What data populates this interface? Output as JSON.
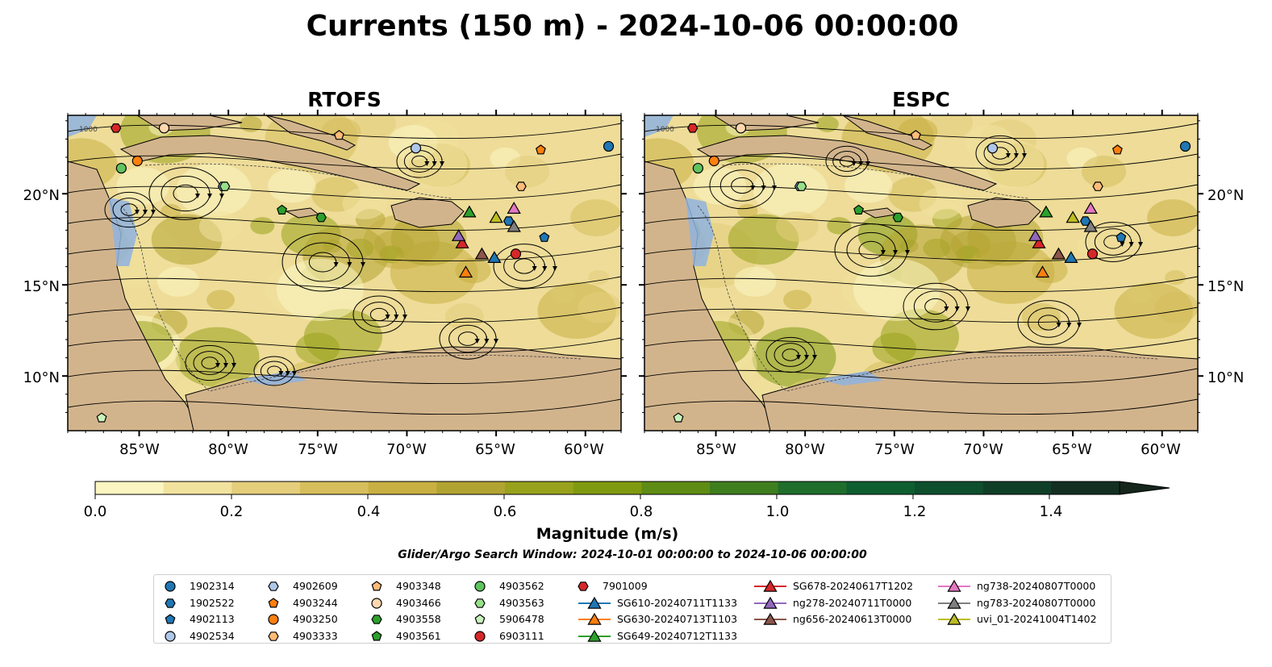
{
  "title": "Currents (150 m) - 2024-10-06 00:00:00",
  "panels": [
    {
      "name": "RTOFS"
    },
    {
      "name": "ESPC"
    }
  ],
  "lon_ticks": [
    "85°W",
    "80°W",
    "75°W",
    "70°W",
    "65°W",
    "60°W"
  ],
  "lat_ticks": [
    "20°N",
    "15°N",
    "10°N"
  ],
  "contour_label": "1000",
  "colorbar": {
    "label": "Magnitude (m/s)",
    "ticks": [
      "0.0",
      "0.2",
      "0.4",
      "0.6",
      "0.8",
      "1.0",
      "1.2",
      "1.4"
    ],
    "colors": [
      "#fbf5c2",
      "#f1e29e",
      "#e4ce7c",
      "#d6be5c",
      "#c8b043",
      "#b2a432",
      "#99a21c",
      "#7f9a10",
      "#5f8c14",
      "#3f7e1e",
      "#1f6e2c",
      "#0f5e30",
      "#0e4f2e",
      "#103f28",
      "#132f22",
      "#15261c"
    ]
  },
  "search_window": "Glider/Argo Search Window: 2024-10-01 00:00:00 to 2024-10-06 00:00:00",
  "colors": {
    "land": "#d2b48c",
    "shallow": "#8fb3e0"
  },
  "legend_items": [
    {
      "label": "1902314",
      "marker": "circle",
      "color": "#1f77b4"
    },
    {
      "label": "1902522",
      "marker": "hexagon",
      "color": "#1f77b4"
    },
    {
      "label": "4902113",
      "marker": "pentagon",
      "color": "#1f77b4"
    },
    {
      "label": "4902534",
      "marker": "circle",
      "color": "#aec7e8"
    },
    {
      "label": "4902609",
      "marker": "hexagon",
      "color": "#aec7e8"
    },
    {
      "label": "4903244",
      "marker": "pentagon",
      "color": "#ff7f0e"
    },
    {
      "label": "4903250",
      "marker": "circle",
      "color": "#ff7f0e"
    },
    {
      "label": "4903333",
      "marker": "hexagon",
      "color": "#ffbb78"
    },
    {
      "label": "4903348",
      "marker": "pentagon",
      "color": "#ffbb78"
    },
    {
      "label": "4903466",
      "marker": "circle",
      "color": "#ffd8b0"
    },
    {
      "label": "4903558",
      "marker": "hexagon",
      "color": "#2ca02c"
    },
    {
      "label": "4903561",
      "marker": "pentagon",
      "color": "#2ca02c"
    },
    {
      "label": "4903562",
      "marker": "circle",
      "color": "#5fc45f"
    },
    {
      "label": "4903563",
      "marker": "hexagon",
      "color": "#98df8a"
    },
    {
      "label": "5906478",
      "marker": "pentagon",
      "color": "#c8f2bc"
    },
    {
      "label": "6903111",
      "marker": "circle",
      "color": "#d62728"
    },
    {
      "label": "7901009",
      "marker": "hexagon",
      "color": "#d62728"
    },
    {
      "label": "SG610-20240711T1133",
      "marker": "triangle",
      "color": "#1f77b4"
    },
    {
      "label": "SG630-20240713T1103",
      "marker": "triangle",
      "color": "#ff7f0e"
    },
    {
      "label": "SG649-20240712T1133",
      "marker": "triangle",
      "color": "#2ca02c"
    },
    {
      "label": "SG678-20240617T1202",
      "marker": "triangle",
      "color": "#d62728"
    },
    {
      "label": "ng278-20240711T0000",
      "marker": "triangle",
      "color": "#9467bd"
    },
    {
      "label": "ng656-20240613T0000",
      "marker": "triangle",
      "color": "#8c564b"
    },
    {
      "label": "ng738-20240807T0000",
      "marker": "triangle",
      "color": "#e377c2"
    },
    {
      "label": "ng783-20240807T0000",
      "marker": "triangle",
      "color": "#7f7f7f"
    },
    {
      "label": "uvi_01-20241004T1402",
      "marker": "triangle",
      "color": "#bcbd22"
    }
  ],
  "observations": [
    {
      "label": "1902314",
      "lon": -58.7,
      "lat": 22.6
    },
    {
      "label": "1902522",
      "lon": -64.3,
      "lat": 18.5
    },
    {
      "label": "4902113",
      "lon": -62.3,
      "lat": 17.6
    },
    {
      "label": "4902534",
      "lon": -69.5,
      "lat": 22.5
    },
    {
      "label": "4902609",
      "lon": -80.3,
      "lat": 20.4
    },
    {
      "label": "4903244",
      "lon": -62.5,
      "lat": 22.4
    },
    {
      "label": "4903250",
      "lon": -85.1,
      "lat": 21.8
    },
    {
      "label": "4903333",
      "lon": -63.6,
      "lat": 20.4
    },
    {
      "label": "4903348",
      "lon": -73.8,
      "lat": 23.2
    },
    {
      "label": "4903466",
      "lon": -83.6,
      "lat": 23.6
    },
    {
      "label": "4903558",
      "lon": -74.8,
      "lat": 18.7
    },
    {
      "label": "4903561",
      "lon": -77.0,
      "lat": 19.1
    },
    {
      "label": "4903562",
      "lon": -86.0,
      "lat": 21.4
    },
    {
      "label": "4903563",
      "lon": -80.2,
      "lat": 20.4
    },
    {
      "label": "5906478",
      "lon": -87.1,
      "lat": 7.7
    },
    {
      "label": "6903111",
      "lon": -63.9,
      "lat": 16.7
    },
    {
      "label": "7901009",
      "lon": -86.3,
      "lat": 23.6
    },
    {
      "label": "SG610-20240711T1133",
      "lon": -65.1,
      "lat": 16.5
    },
    {
      "label": "SG630-20240713T1103",
      "lon": -66.7,
      "lat": 15.7
    },
    {
      "label": "SG649-20240712T1133",
      "lon": -66.5,
      "lat": 19.0
    },
    {
      "label": "SG678-20240617T1202",
      "lon": -66.9,
      "lat": 17.3
    },
    {
      "label": "ng278-20240711T0000",
      "lon": -67.1,
      "lat": 17.7
    },
    {
      "label": "ng656-20240613T0000",
      "lon": -65.8,
      "lat": 16.7
    },
    {
      "label": "ng738-20240807T0000",
      "lon": -64.0,
      "lat": 19.2
    },
    {
      "label": "ng783-20240807T0000",
      "lon": -64.0,
      "lat": 18.2
    },
    {
      "label": "uvi_01-20241004T1402",
      "lon": -65.0,
      "lat": 18.7
    }
  ]
}
